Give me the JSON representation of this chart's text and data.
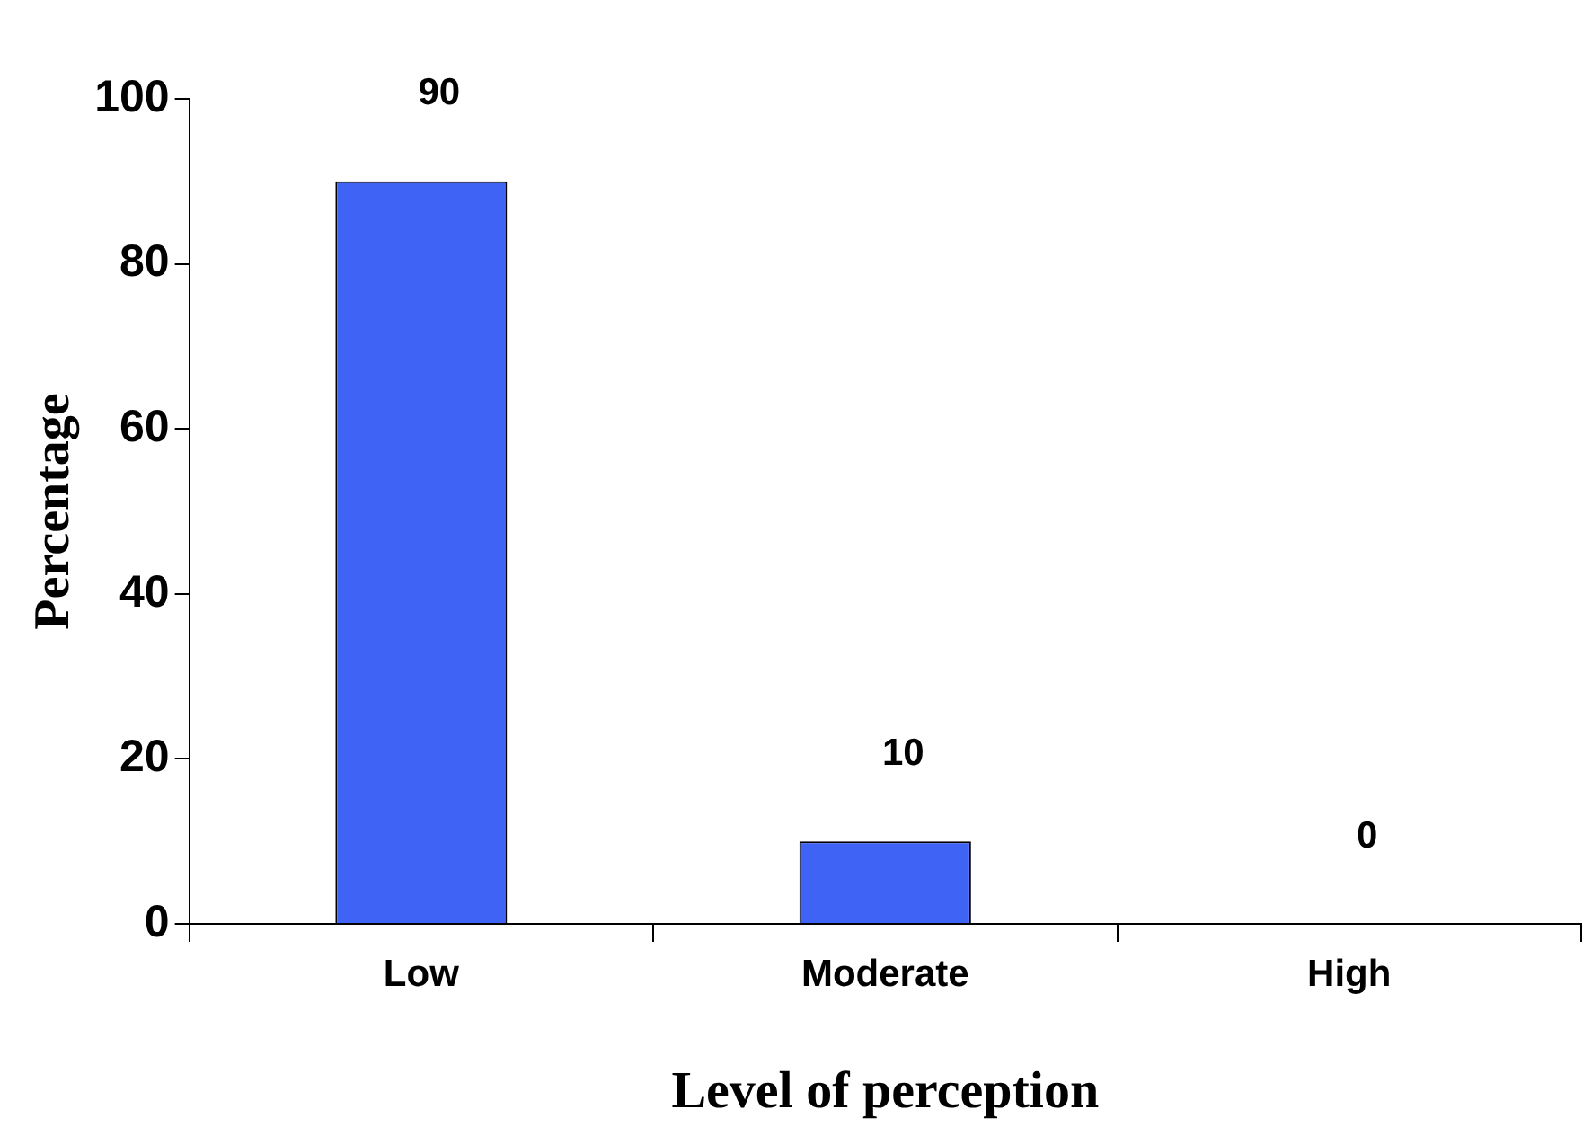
{
  "chart_data": {
    "type": "bar",
    "xlabel": "Level of perception",
    "ylabel": "Percentage",
    "categories": [
      "Low",
      "Moderate",
      "High"
    ],
    "values": [
      90,
      10,
      0
    ],
    "color": "#3f64f5",
    "ylim": [
      0,
      100
    ],
    "yticks": [
      0,
      20,
      40,
      60,
      80,
      100
    ],
    "grid": false,
    "legend": false,
    "data_labels": true
  }
}
